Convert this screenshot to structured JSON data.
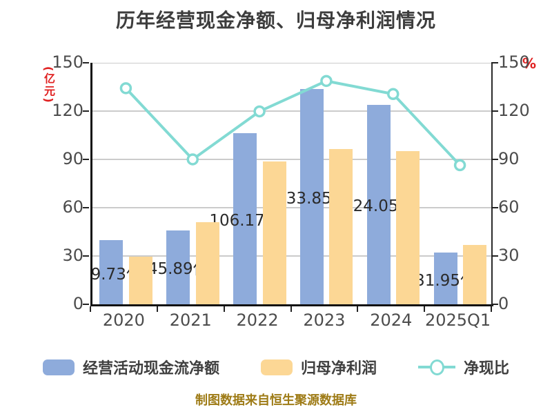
{
  "title": "历年经营现金净额、归母净利润情况",
  "source": "制图数据来自恒生聚源数据库",
  "axes": {
    "left_unit": "(亿元)",
    "right_unit": "%",
    "left_ticks": [
      "0",
      "30",
      "60",
      "90",
      "120",
      "150"
    ],
    "right_ticks": [
      "0",
      "30",
      "60",
      "90",
      "120",
      "150"
    ]
  },
  "legend": [
    {
      "label": "经营活动现金流净额",
      "type": "bar",
      "color": "#8eabdb"
    },
    {
      "label": "归母净利润",
      "type": "bar",
      "color": "#fcd795"
    },
    {
      "label": "净现比",
      "type": "line",
      "color": "#82dad3"
    }
  ],
  "colors": {
    "cashflow_bar": "#8eabdb",
    "netprofit_bar": "#fcd795",
    "ratio_line": "#82dad3",
    "grid": "#cbcbcb",
    "axis": "#111111",
    "accent_red": "#e01f1f",
    "source_text": "#9e7b16"
  },
  "chart_data": {
    "type": "bar+line combo",
    "categories": [
      "2020",
      "2021",
      "2022",
      "2023",
      "2024",
      "2025Q1"
    ],
    "series": [
      {
        "name": "经营活动现金流净额",
        "type": "bar",
        "axis": "left (亿元)",
        "values": [
          39.73,
          45.89,
          106.17,
          133.85,
          124.05,
          31.95
        ],
        "labels": [
          "39.73亿",
          "45.89亿",
          "106.17亿",
          "133.85亿",
          "124.05亿",
          "31.95亿"
        ]
      },
      {
        "name": "归母净利润",
        "type": "bar",
        "axis": "left (亿元)",
        "values": [
          29.6,
          51.0,
          88.6,
          96.5,
          95.0,
          37.0
        ]
      },
      {
        "name": "净现比",
        "type": "line",
        "axis": "right (%)",
        "values": [
          134.2,
          90.0,
          119.8,
          138.7,
          130.6,
          86.4
        ]
      }
    ],
    "ylim": [
      0,
      150
    ],
    "y_interval": 30,
    "grid": true,
    "legend_position": "bottom"
  }
}
